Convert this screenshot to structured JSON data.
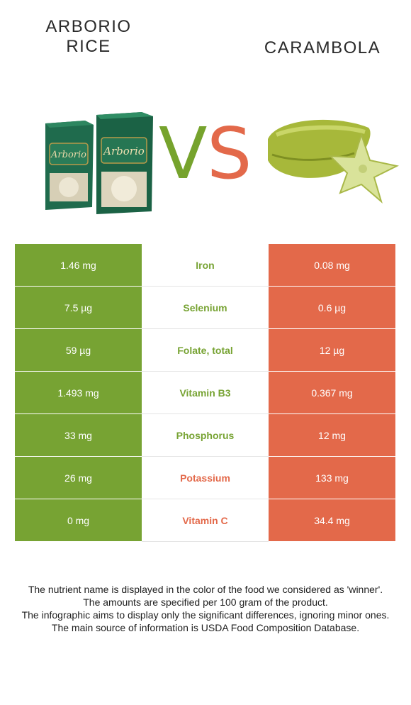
{
  "foods": {
    "left_name": [
      "ARBORIO",
      "RICE"
    ],
    "right_name": "CARAMBOLA",
    "vs": [
      "V",
      "S"
    ]
  },
  "colors": {
    "left": "#77a333",
    "right": "#e3694a"
  },
  "rows": [
    {
      "nutrient": "Iron",
      "left": "1.46 mg",
      "right": "0.08 mg",
      "winner": "left"
    },
    {
      "nutrient": "Selenium",
      "left": "7.5 µg",
      "right": "0.6 µg",
      "winner": "left"
    },
    {
      "nutrient": "Folate, total",
      "left": "59 µg",
      "right": "12 µg",
      "winner": "left"
    },
    {
      "nutrient": "Vitamin B3",
      "left": "1.493 mg",
      "right": "0.367 mg",
      "winner": "left"
    },
    {
      "nutrient": "Phosphorus",
      "left": "33 mg",
      "right": "12 mg",
      "winner": "left"
    },
    {
      "nutrient": "Potassium",
      "left": "26 mg",
      "right": "133 mg",
      "winner": "right"
    },
    {
      "nutrient": "Vitamin C",
      "left": "0 mg",
      "right": "34.4 mg",
      "winner": "right"
    }
  ],
  "footnote": [
    "The nutrient name is displayed in the color of the food we considered as 'winner'.",
    "The amounts are specified per 100 gram of the product.",
    "The infographic aims to display only the significant differences, ignoring minor ones.",
    "The main source of information is USDA Food Composition Database."
  ]
}
